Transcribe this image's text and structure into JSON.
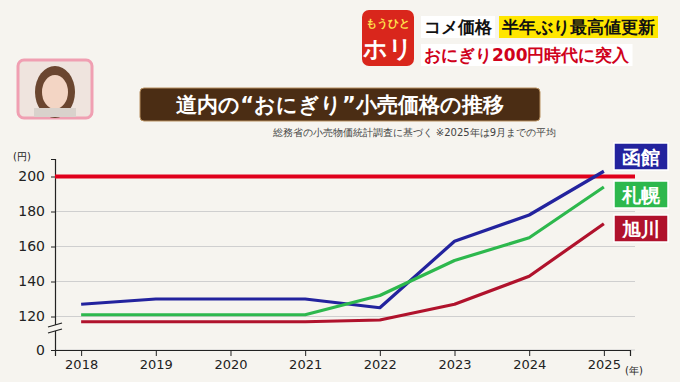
{
  "banner": {
    "logo_top": "もうひと",
    "logo_bottom": "ホリ",
    "topic": "コメ価格",
    "headline": "半年ぶり最高値更新",
    "subheadline": "おにぎり200円時代に突入"
  },
  "chart_data": {
    "type": "line",
    "title": "道内の“おにぎり”小売価格の推移",
    "subtitle": "総務省の小売物価統計調査に基づく ※2025年は9月までの平均",
    "x_label": "(年)",
    "y_label": "(円)",
    "categories": [
      "2018",
      "2019",
      "2020",
      "2021",
      "2022",
      "2023",
      "2024",
      "2025"
    ],
    "series": [
      {
        "name": "函館",
        "color": "#23239e",
        "values": [
          127,
          130,
          130,
          130,
          125,
          163,
          178,
          203
        ]
      },
      {
        "name": "札幌",
        "color": "#2db84d",
        "values": [
          121,
          121,
          121,
          121,
          132,
          152,
          165,
          194
        ]
      },
      {
        "name": "旭川",
        "color": "#b0122c",
        "values": [
          117,
          117,
          117,
          117,
          118,
          127,
          143,
          173
        ]
      }
    ],
    "reference_line": {
      "value": 200,
      "color": "#e0001b"
    },
    "ylim": [
      0,
      210
    ],
    "yticks": [
      0,
      120,
      140,
      160,
      180,
      200
    ],
    "grid": true,
    "legend": "right"
  }
}
